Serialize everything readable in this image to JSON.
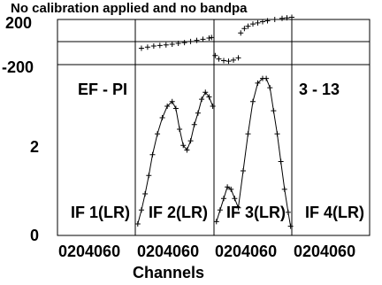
{
  "chart_data": {
    "type": "scatter",
    "title": "No calibration applied and no bandpa",
    "xlabel": "Channels",
    "ylabel": "",
    "baseline_label": "EF - PI",
    "channel_label": "3 - 13",
    "panels": [
      {
        "name": "IF 1(LR)",
        "xtick_text": "0204060",
        "phase": [],
        "amp": []
      },
      {
        "name": "IF 2(LR)",
        "xtick_text": "0204060",
        "phase": [
          [
            5,
            -55
          ],
          [
            10,
            -45
          ],
          [
            15,
            -35
          ],
          [
            20,
            -30
          ],
          [
            25,
            -25
          ],
          [
            30,
            -20
          ],
          [
            35,
            -12
          ],
          [
            40,
            -5
          ],
          [
            45,
            5
          ],
          [
            50,
            15
          ],
          [
            55,
            25
          ],
          [
            60,
            35
          ],
          [
            62,
            40
          ]
        ],
        "amp": [
          [
            2,
            0.25
          ],
          [
            5,
            0.55
          ],
          [
            8,
            0.9
          ],
          [
            11,
            1.3
          ],
          [
            14,
            1.75
          ],
          [
            18,
            2.2
          ],
          [
            22,
            2.55
          ],
          [
            26,
            2.8
          ],
          [
            30,
            2.9
          ],
          [
            33,
            2.75
          ],
          [
            36,
            2.3
          ],
          [
            39,
            1.95
          ],
          [
            42,
            1.85
          ],
          [
            45,
            2.05
          ],
          [
            48,
            2.4
          ],
          [
            51,
            2.65
          ],
          [
            54,
            2.95
          ],
          [
            57,
            3.1
          ],
          [
            60,
            3.0
          ],
          [
            63,
            2.8
          ]
        ]
      },
      {
        "name": "IF 3(LR)",
        "xtick_text": "0204060",
        "phase": [
          [
            1,
            -120
          ],
          [
            4,
            -150
          ],
          [
            8,
            -165
          ],
          [
            12,
            -170
          ],
          [
            16,
            -160
          ],
          [
            20,
            -140
          ],
          [
            22,
            80
          ],
          [
            25,
            120
          ],
          [
            28,
            140
          ],
          [
            32,
            160
          ],
          [
            36,
            170
          ],
          [
            40,
            180
          ],
          [
            44,
            188
          ],
          [
            50,
            200
          ],
          [
            56,
            210
          ],
          [
            60,
            215
          ],
          [
            64,
            220
          ]
        ],
        "amp": [
          [
            2,
            0.3
          ],
          [
            5,
            0.55
          ],
          [
            8,
            0.8
          ],
          [
            11,
            1.05
          ],
          [
            14,
            1.0
          ],
          [
            17,
            0.8
          ],
          [
            20,
            0.6
          ],
          [
            24,
            1.4
          ],
          [
            28,
            2.2
          ],
          [
            32,
            2.9
          ],
          [
            36,
            3.3
          ],
          [
            40,
            3.4
          ],
          [
            43,
            3.4
          ],
          [
            46,
            3.2
          ],
          [
            49,
            2.7
          ],
          [
            52,
            2.2
          ],
          [
            55,
            1.6
          ],
          [
            58,
            1.0
          ],
          [
            61,
            0.5
          ],
          [
            63,
            0.2
          ]
        ]
      },
      {
        "name": "IF 4(LR)",
        "xtick_text": "0204060",
        "phase": [],
        "amp": []
      }
    ],
    "phase_axis": {
      "range": [
        -200,
        200
      ],
      "ticks": [
        "200",
        "-200"
      ]
    },
    "amp_axis": {
      "range": [
        0,
        3.7
      ],
      "ticks": [
        "2",
        "0"
      ]
    },
    "x_range": [
      0,
      64
    ]
  }
}
